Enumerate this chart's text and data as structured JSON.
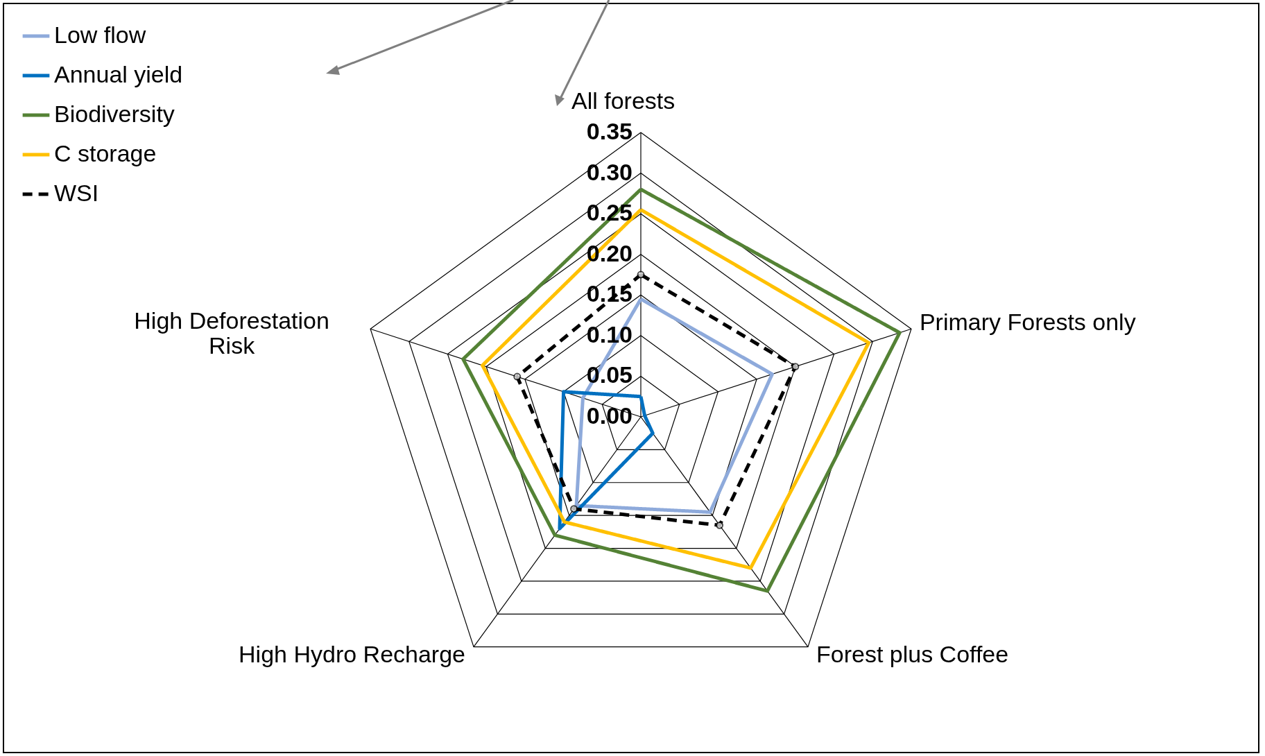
{
  "chart_data": {
    "type": "radar",
    "categories": [
      "All forests",
      "Primary Forests only",
      "Forest plus Coffee",
      "High Hydro Recharge",
      "High Deforestation Risk"
    ],
    "series": [
      {
        "name": "Low flow",
        "color": "#8eaadb",
        "values": [
          0.145,
          0.17,
          0.145,
          0.135,
          0.075
        ]
      },
      {
        "name": "Annual yield",
        "color": "#0070c0",
        "values": [
          0.025,
          0.005,
          0.025,
          0.17,
          0.1
        ]
      },
      {
        "name": "Biodiversity",
        "color": "#548235",
        "values": [
          0.28,
          0.335,
          0.265,
          0.18,
          0.23
        ]
      },
      {
        "name": "C storage",
        "color": "#ffc000",
        "values": [
          0.255,
          0.295,
          0.23,
          0.16,
          0.205
        ]
      },
      {
        "name": "WSI",
        "color": "#000000",
        "values": [
          0.175,
          0.2,
          0.165,
          0.14,
          0.16
        ],
        "line_style": "dashed",
        "marker": "circle"
      }
    ],
    "ylim": [
      0,
      0.35
    ],
    "yticks": [
      {
        "value": 0,
        "label": "0.00"
      },
      {
        "value": 0.05,
        "label": "0.05"
      },
      {
        "value": 0.1,
        "label": "0.10"
      },
      {
        "value": 0.15,
        "label": "0.15"
      },
      {
        "value": 0.2,
        "label": "0.20"
      },
      {
        "value": 0.25,
        "label": "0.25"
      },
      {
        "value": 0.3,
        "label": "0.30"
      },
      {
        "value": 0.35,
        "label": "0.35"
      }
    ],
    "grid": true,
    "legend": "top left",
    "line_style": "solid",
    "marker": "none"
  }
}
